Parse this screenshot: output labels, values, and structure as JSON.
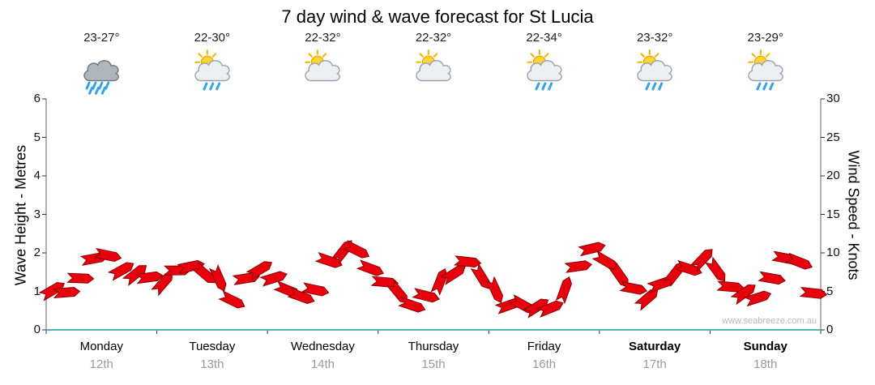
{
  "title": "7 day wind & wave forecast for St Lucia",
  "watermark": "www.seabreeze.com.au",
  "colors": {
    "arrow": "#e8000d",
    "arrow_outline": "#8e0000",
    "baseline": "#49b8c4",
    "sun": "#ffd633",
    "rain_drop": "#35a3e8",
    "cloud_light": "#edf0f3",
    "cloud_dark": "#aeb6bc"
  },
  "axes": {
    "left_title": "Wave Height - Metres",
    "right_title": "Wind Speed - Knots",
    "left_ticks": [
      "0",
      "1",
      "2",
      "3",
      "4",
      "5",
      "6"
    ],
    "right_ticks": [
      "0",
      "5",
      "10",
      "15",
      "20",
      "25",
      "30"
    ]
  },
  "days": [
    {
      "name": "Monday",
      "date": "12th",
      "temp": "23-27°",
      "icon": "rain-cloud-icon",
      "bold": false
    },
    {
      "name": "Tuesday",
      "date": "13th",
      "temp": "22-30°",
      "icon": "sun-cloud-rain-icon",
      "bold": false
    },
    {
      "name": "Wednesday",
      "date": "14th",
      "temp": "22-32°",
      "icon": "sun-cloud-icon",
      "bold": false
    },
    {
      "name": "Thursday",
      "date": "15th",
      "temp": "22-32°",
      "icon": "sun-cloud-icon",
      "bold": false
    },
    {
      "name": "Friday",
      "date": "16th",
      "temp": "22-34°",
      "icon": "sun-cloud-rain-icon",
      "bold": false
    },
    {
      "name": "Saturday",
      "date": "17th",
      "temp": "23-32°",
      "icon": "sun-cloud-rain-icon",
      "bold": true
    },
    {
      "name": "Sunday",
      "date": "18th",
      "temp": "23-29°",
      "icon": "sun-cloud-rain-icon",
      "bold": true
    }
  ],
  "chart_data": {
    "type": "line",
    "marker": "wind-arrow",
    "title": "7 day wind & wave forecast for St Lucia",
    "x_categories": [
      "Monday 12th",
      "Tuesday 13th",
      "Wednesday 14th",
      "Thursday 15th",
      "Friday 16th",
      "Saturday 17th",
      "Sunday 18th"
    ],
    "samples_per_day": 8,
    "left_axis": {
      "label": "Wave Height - Metres",
      "range": [
        0,
        6
      ]
    },
    "right_axis": {
      "label": "Wind Speed - Knots",
      "range": [
        0,
        30
      ]
    },
    "grid": false,
    "series": [
      {
        "name": "Wind Speed (knots)",
        "values": [
          5.5,
          5.0,
          6.5,
          9.5,
          10.0,
          8.0,
          7.5,
          7.0,
          6.5,
          7.5,
          8.0,
          7.0,
          6.5,
          4.0,
          6.5,
          7.5,
          7.0,
          5.0,
          4.0,
          5.5,
          9.0,
          10.5,
          10.0,
          8.0,
          6.0,
          4.5,
          3.0,
          4.0,
          6.5,
          7.5,
          8.5,
          7.0,
          5.0,
          3.5,
          2.8,
          3.3,
          3.0,
          5.5,
          8.5,
          10.5,
          9.0,
          7.0,
          5.0,
          4.5,
          6.0,
          7.0,
          8.0,
          9.0,
          8.0,
          6.0,
          5.0,
          4.5,
          6.5,
          9.5,
          8.5,
          5.0
        ]
      },
      {
        "name": "Wave Height (metres)",
        "values": [
          1.1,
          1.0,
          1.3,
          1.9,
          2.0,
          1.6,
          1.5,
          1.4,
          1.3,
          1.5,
          1.6,
          1.4,
          1.3,
          0.8,
          1.3,
          1.5,
          1.4,
          1.0,
          0.8,
          1.1,
          1.8,
          2.1,
          2.0,
          1.6,
          1.2,
          0.9,
          0.6,
          0.8,
          1.3,
          1.5,
          1.7,
          1.4,
          1.0,
          0.7,
          0.56,
          0.66,
          0.6,
          1.1,
          1.7,
          2.1,
          1.8,
          1.4,
          1.0,
          0.9,
          1.2,
          1.4,
          1.6,
          1.8,
          1.6,
          1.2,
          1.0,
          0.9,
          1.3,
          1.9,
          1.7,
          1.0
        ]
      }
    ]
  }
}
